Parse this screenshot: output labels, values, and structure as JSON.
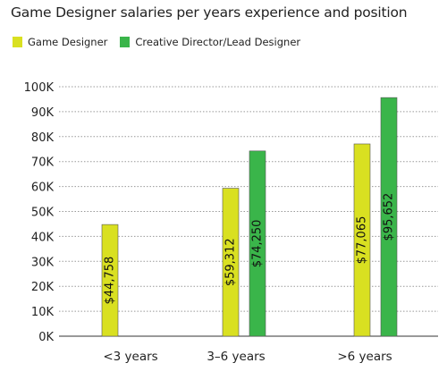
{
  "chart_data": {
    "type": "bar",
    "title": "Game Designer salaries per years experience and position",
    "categories": [
      "<3 years",
      "3–6 years",
      ">6 years"
    ],
    "series": [
      {
        "name": "Game Designer",
        "color": "#d9e021",
        "values": [
          44758,
          59312,
          77065
        ],
        "labels": [
          "$44,758",
          "$59,312",
          "$77,065"
        ]
      },
      {
        "name": "Creative Director/Lead Designer",
        "color": "#3ab54a",
        "values": [
          null,
          74250,
          95652
        ],
        "labels": [
          "",
          "$74,250",
          "$95,652"
        ]
      }
    ],
    "y_ticks": [
      "0K",
      "10K",
      "20K",
      "30K",
      "40K",
      "50K",
      "60K",
      "70K",
      "80K",
      "90K",
      "100K"
    ],
    "ylim": [
      0,
      100000
    ],
    "grid": true,
    "legend_position": "top-left"
  }
}
